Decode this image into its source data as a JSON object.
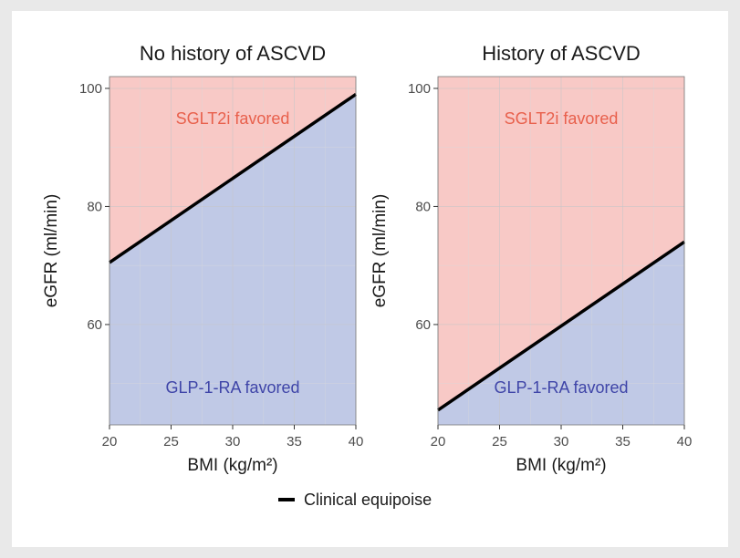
{
  "colors": {
    "favored_sglt2i": "#f8c9c6",
    "favored_glp1": "#c0c9e6",
    "sglt2i_text": "#e8604c",
    "glp1_text": "#3f45a8",
    "equipoise_line": "#000000",
    "grid_major": "#c5c5c8",
    "grid_minor": "#d9d9dc"
  },
  "chart_data": [
    {
      "type": "area",
      "title": "No history of ASCVD",
      "xlabel": "BMI (kg/m²)",
      "ylabel": "eGFR (ml/min)",
      "xlim": [
        20,
        40
      ],
      "ylim": [
        43,
        102
      ],
      "xticks": [
        20,
        25,
        30,
        35,
        40
      ],
      "yticks": [
        60,
        80,
        100
      ],
      "grid": true,
      "equipoise_line": {
        "x": [
          20,
          40
        ],
        "y": [
          70.5,
          99
        ]
      },
      "regions": [
        {
          "name": "SGLT2i favored",
          "position": "above line"
        },
        {
          "name": "GLP-1-RA favored",
          "position": "below line"
        }
      ]
    },
    {
      "type": "area",
      "title": "History of ASCVD",
      "xlabel": "BMI (kg/m²)",
      "ylabel": "eGFR (ml/min)",
      "xlim": [
        20,
        40
      ],
      "ylim": [
        43,
        102
      ],
      "xticks": [
        20,
        25,
        30,
        35,
        40
      ],
      "yticks": [
        60,
        80,
        100
      ],
      "grid": true,
      "equipoise_line": {
        "x": [
          20,
          40
        ],
        "y": [
          45.5,
          74
        ]
      },
      "regions": [
        {
          "name": "SGLT2i favored",
          "position": "above line"
        },
        {
          "name": "GLP-1-RA favored",
          "position": "below line"
        }
      ]
    }
  ],
  "legend": {
    "label": "Clinical equipoise",
    "placement": "bottom"
  }
}
